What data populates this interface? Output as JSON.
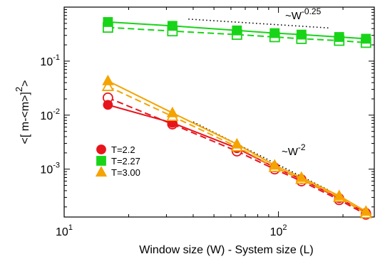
{
  "chart_data": {
    "type": "line",
    "x_scale": "log",
    "y_scale": "log",
    "xlim": [
      10,
      280
    ],
    "ylim": [
      0.00013,
      1.0
    ],
    "xlabel": "Window size (W) - System size (L)",
    "ylabel": "<[ m-<m>]",
    "ylabel_sup": "2",
    "ylabel_tail": ">",
    "x_ticks": [
      {
        "value": 10,
        "base": "10",
        "exp": "1"
      },
      {
        "value": 100,
        "base": "10",
        "exp": "2"
      }
    ],
    "y_ticks": [
      {
        "value": 0.001,
        "base": "10",
        "exp": "-3"
      },
      {
        "value": 0.01,
        "base": "10",
        "exp": "-2"
      },
      {
        "value": 0.1,
        "base": "10",
        "exp": "-1"
      }
    ],
    "x": [
      16,
      32,
      64,
      96,
      128,
      192,
      256
    ],
    "series": [
      {
        "name": "T=2.2",
        "color": "#e8141c",
        "marker": "circle",
        "filled": [
          0.0155,
          0.0072,
          0.00245,
          0.00108,
          0.00065,
          0.00029,
          0.000155
        ],
        "open": [
          0.021,
          0.0068,
          0.00215,
          0.001,
          0.0006,
          0.00027,
          0.000145
        ]
      },
      {
        "name": "T=2.27",
        "color": "#18d418",
        "marker": "square",
        "filled": [
          0.53,
          0.45,
          0.37,
          0.33,
          0.31,
          0.28,
          0.26
        ],
        "open": [
          0.42,
          0.36,
          0.31,
          0.28,
          0.26,
          0.24,
          0.22
        ]
      },
      {
        "name": "T=3.00",
        "color": "#f5a300",
        "marker": "triangle",
        "filled": [
          0.043,
          0.011,
          0.0029,
          0.00118,
          0.0007,
          0.00032,
          0.000165
        ],
        "open": [
          0.034,
          0.0095,
          0.0026,
          0.00108,
          0.00065,
          0.0003,
          0.00015
        ]
      }
    ],
    "guides": [
      {
        "label": "~W",
        "exp": "-0.25",
        "slope": -0.25,
        "x_start": 38,
        "y_start": 0.6,
        "x_end": 175
      },
      {
        "label": "~W",
        "exp": "-2",
        "slope": -2,
        "x_start": 40,
        "y_start": 0.0075,
        "x_end": 170
      }
    ],
    "legend_position": "bottom-left",
    "grid": false
  }
}
